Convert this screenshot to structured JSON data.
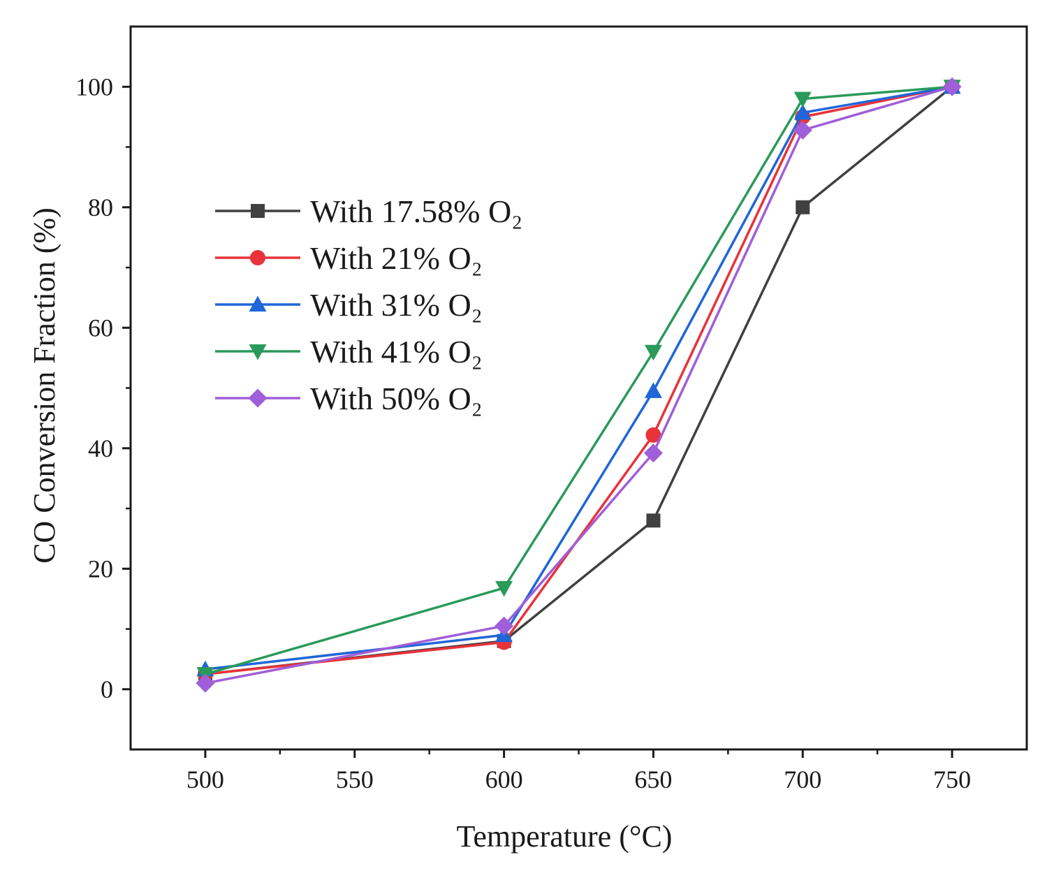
{
  "chart_data": {
    "type": "line",
    "title": "",
    "xlabel": "Temperature (°C)",
    "ylabel": "CO Conversion Fraction (%)",
    "xlim": [
      475,
      775
    ],
    "ylim": [
      -10,
      110
    ],
    "xticks": [
      500,
      550,
      600,
      650,
      700,
      750
    ],
    "yticks": [
      0,
      20,
      40,
      60,
      80,
      100
    ],
    "grid": false,
    "legend_position": "upper-left",
    "x": [
      500,
      600,
      650,
      700,
      750
    ],
    "series": [
      {
        "name": "With 17.58% O₂",
        "color": "#404040",
        "marker": "square",
        "values": [
          2.5,
          8.0,
          28.0,
          80.0,
          100.0
        ]
      },
      {
        "name": "With 21% O₂",
        "color": "#e8333a",
        "marker": "circle",
        "values": [
          2.5,
          7.8,
          42.2,
          95.0,
          100.0
        ]
      },
      {
        "name": "With 31% O₂",
        "color": "#1f66d8",
        "marker": "triangle-up",
        "values": [
          3.3,
          9.0,
          49.5,
          95.7,
          100.0
        ]
      },
      {
        "name": "With 41% O₂",
        "color": "#2a9a5a",
        "marker": "triangle-down",
        "values": [
          2.5,
          16.8,
          56.0,
          98.0,
          100.0
        ]
      },
      {
        "name": "With 50% O₂",
        "color": "#a05ed8",
        "marker": "diamond",
        "values": [
          1.0,
          10.5,
          39.2,
          92.8,
          100.0
        ]
      }
    ]
  }
}
